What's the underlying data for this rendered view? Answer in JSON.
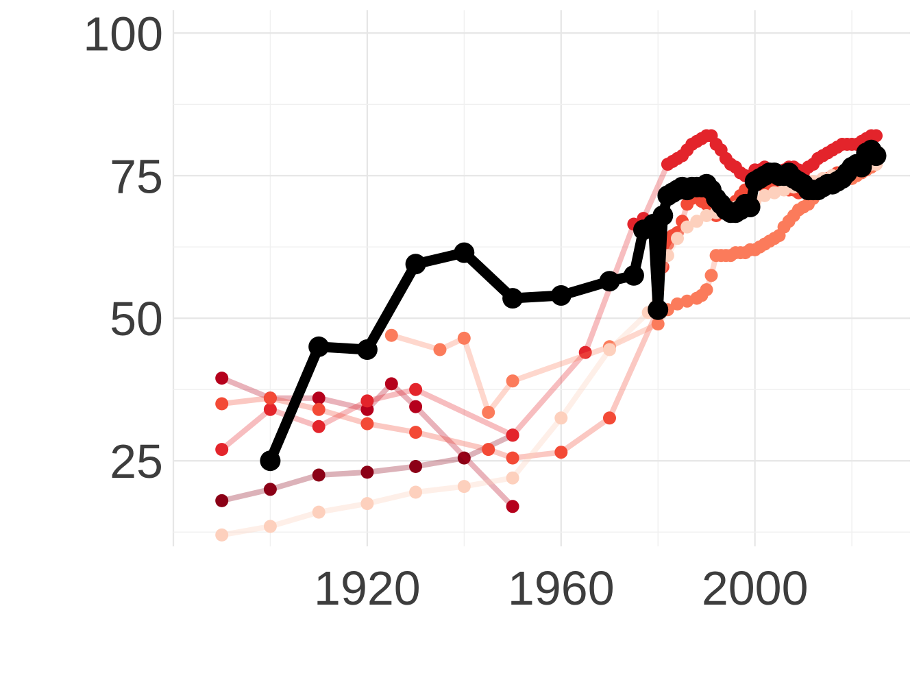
{
  "chart_data": {
    "type": "line",
    "title": "",
    "xlabel": "",
    "ylabel": "",
    "xlim": [
      1880,
      2032
    ],
    "ylim": [
      10,
      104
    ],
    "x_ticks": [
      1920,
      1960,
      2000
    ],
    "y_ticks": [
      25,
      50,
      75,
      100
    ],
    "grid": true,
    "legend": "none",
    "series": [
      {
        "color": "#8b0016",
        "opacity": 0.3,
        "points": [
          [
            1890,
            18
          ],
          [
            1900,
            20
          ],
          [
            1910,
            22.5
          ],
          [
            1920,
            23
          ],
          [
            1930,
            24
          ],
          [
            1940,
            25.5
          ],
          [
            1950,
            29.5
          ]
        ]
      },
      {
        "color": "#b5001c",
        "opacity": 0.3,
        "points": [
          [
            1890,
            39.5
          ],
          [
            1900,
            36
          ],
          [
            1910,
            36
          ],
          [
            1920,
            34
          ],
          [
            1925,
            38.5
          ],
          [
            1930,
            34.5
          ],
          [
            1950,
            17
          ]
        ]
      },
      {
        "color": "#e3242b",
        "opacity": 0.3,
        "points": [
          [
            1890,
            27
          ],
          [
            1900,
            34
          ],
          [
            1910,
            31
          ],
          [
            1920,
            35.5
          ],
          [
            1930,
            37.5
          ],
          [
            1950,
            29.5
          ],
          [
            1965,
            44
          ],
          [
            1975,
            66.5
          ],
          [
            1977,
            67.5
          ],
          [
            1982,
            77
          ],
          [
            1983,
            77.5
          ],
          [
            1984,
            78
          ],
          [
            1985,
            78.5
          ],
          [
            1986,
            79.5
          ],
          [
            1987,
            80.5
          ],
          [
            1988,
            81
          ],
          [
            1989,
            81.5
          ],
          [
            1990,
            82
          ],
          [
            1991,
            82
          ],
          [
            1992,
            80.5
          ],
          [
            1993,
            79.5
          ],
          [
            1994,
            78
          ],
          [
            1995,
            77
          ],
          [
            1996,
            76.5
          ],
          [
            1997,
            75.5
          ],
          [
            1998,
            75
          ],
          [
            1999,
            74.5
          ],
          [
            2000,
            76
          ],
          [
            2001,
            76
          ],
          [
            2002,
            76.5
          ],
          [
            2003,
            76
          ],
          [
            2004,
            75.5
          ],
          [
            2005,
            75.5
          ],
          [
            2006,
            76
          ],
          [
            2007,
            76.5
          ],
          [
            2008,
            76.5
          ],
          [
            2009,
            76
          ],
          [
            2010,
            75.5
          ],
          [
            2011,
            76.5
          ],
          [
            2012,
            77
          ],
          [
            2013,
            78
          ],
          [
            2014,
            78.5
          ],
          [
            2015,
            79
          ],
          [
            2016,
            79.5
          ],
          [
            2017,
            80
          ],
          [
            2018,
            80.5
          ],
          [
            2019,
            80.5
          ],
          [
            2020,
            80.5
          ],
          [
            2021,
            80.5
          ],
          [
            2022,
            81
          ],
          [
            2023,
            81.5
          ],
          [
            2024,
            82
          ],
          [
            2025,
            82
          ]
        ]
      },
      {
        "color": "#f34a36",
        "opacity": 0.3,
        "points": [
          [
            1890,
            35
          ],
          [
            1900,
            36
          ],
          [
            1910,
            34
          ],
          [
            1920,
            31.5
          ],
          [
            1930,
            30
          ],
          [
            1945,
            27
          ],
          [
            1950,
            25.5
          ],
          [
            1960,
            26.5
          ],
          [
            1970,
            32.5
          ],
          [
            1980,
            51.5
          ],
          [
            1981,
            59
          ],
          [
            1982,
            63
          ],
          [
            1983,
            64.5
          ],
          [
            1984,
            65
          ],
          [
            1985,
            67
          ],
          [
            1986,
            70
          ],
          [
            1987,
            71
          ],
          [
            1988,
            71.5
          ],
          [
            1989,
            70.5
          ],
          [
            1990,
            70
          ],
          [
            1991,
            69
          ],
          [
            1992,
            68
          ],
          [
            1993,
            68.5
          ],
          [
            1994,
            69
          ],
          [
            1995,
            69.5
          ],
          [
            1996,
            70.5
          ],
          [
            1997,
            71.5
          ],
          [
            1998,
            72.5
          ],
          [
            1999,
            73
          ],
          [
            2000,
            73.5
          ],
          [
            2001,
            73.5
          ],
          [
            2002,
            73
          ],
          [
            2003,
            73
          ],
          [
            2004,
            73
          ],
          [
            2005,
            73
          ],
          [
            2006,
            73
          ],
          [
            2007,
            72.5
          ],
          [
            2008,
            72.5
          ],
          [
            2009,
            72
          ],
          [
            2010,
            72.5
          ],
          [
            2011,
            72.5
          ],
          [
            2012,
            73
          ],
          [
            2013,
            73.5
          ],
          [
            2014,
            74
          ],
          [
            2015,
            74.5
          ],
          [
            2016,
            75
          ],
          [
            2017,
            75.5
          ],
          [
            2018,
            75.5
          ],
          [
            2019,
            76
          ],
          [
            2020,
            76
          ],
          [
            2021,
            76.5
          ],
          [
            2022,
            77
          ],
          [
            2023,
            77.5
          ],
          [
            2024,
            78
          ],
          [
            2025,
            78
          ]
        ]
      },
      {
        "color": "#fb7b5b",
        "opacity": 0.3,
        "points": [
          [
            1925,
            47
          ],
          [
            1935,
            44.5
          ],
          [
            1940,
            46.5
          ],
          [
            1945,
            33.5
          ],
          [
            1950,
            39
          ],
          [
            1970,
            45
          ],
          [
            1980,
            49
          ],
          [
            1982,
            51.5
          ],
          [
            1984,
            52.5
          ],
          [
            1986,
            53
          ],
          [
            1988,
            53.5
          ],
          [
            1989,
            54
          ],
          [
            1990,
            55
          ],
          [
            1991,
            57.5
          ],
          [
            1992,
            61
          ],
          [
            1993,
            61
          ],
          [
            1994,
            61
          ],
          [
            1995,
            61
          ],
          [
            1996,
            61.5
          ],
          [
            1997,
            61.5
          ],
          [
            1998,
            61.5
          ],
          [
            1999,
            62
          ],
          [
            2000,
            62
          ],
          [
            2001,
            62.5
          ],
          [
            2002,
            63
          ],
          [
            2003,
            63.5
          ],
          [
            2004,
            64
          ],
          [
            2005,
            64.5
          ],
          [
            2006,
            66
          ],
          [
            2007,
            67
          ],
          [
            2008,
            68
          ],
          [
            2009,
            69
          ],
          [
            2010,
            69.5
          ],
          [
            2011,
            70
          ],
          [
            2012,
            71
          ],
          [
            2013,
            72
          ],
          [
            2014,
            72.5
          ],
          [
            2015,
            73
          ],
          [
            2016,
            73.5
          ],
          [
            2017,
            74
          ],
          [
            2018,
            74
          ],
          [
            2019,
            74.5
          ],
          [
            2020,
            74.5
          ],
          [
            2021,
            75
          ],
          [
            2022,
            75.5
          ],
          [
            2023,
            76
          ],
          [
            2024,
            76.5
          ],
          [
            2025,
            77
          ]
        ]
      },
      {
        "color": "#fdd0bd",
        "opacity": 0.35,
        "points": [
          [
            1890,
            12
          ],
          [
            1900,
            13.5
          ],
          [
            1910,
            16
          ],
          [
            1920,
            17.5
          ],
          [
            1930,
            19.5
          ],
          [
            1940,
            20.5
          ],
          [
            1950,
            22
          ],
          [
            1960,
            32.5
          ],
          [
            1970,
            44.5
          ],
          [
            1978,
            51
          ],
          [
            1980,
            55
          ],
          [
            1982,
            61
          ],
          [
            1984,
            64
          ],
          [
            1986,
            66
          ],
          [
            1988,
            67
          ],
          [
            1990,
            68
          ],
          [
            1992,
            68.5
          ],
          [
            1994,
            69
          ],
          [
            1996,
            69.5
          ],
          [
            1998,
            70
          ],
          [
            2000,
            70.5
          ],
          [
            2002,
            71.5
          ],
          [
            2004,
            72
          ],
          [
            2006,
            72.5
          ],
          [
            2008,
            73
          ],
          [
            2010,
            73.5
          ],
          [
            2012,
            74
          ],
          [
            2014,
            74.5
          ],
          [
            2016,
            75
          ],
          [
            2018,
            75.5
          ],
          [
            2020,
            76
          ],
          [
            2022,
            76.5
          ],
          [
            2024,
            77
          ],
          [
            2025,
            77
          ]
        ]
      },
      {
        "color": "#000000",
        "opacity": 1,
        "highlight": true,
        "points": [
          [
            1900,
            25
          ],
          [
            1910,
            45
          ],
          [
            1920,
            44.5
          ],
          [
            1930,
            59.5
          ],
          [
            1940,
            61.5
          ],
          [
            1950,
            53.5
          ],
          [
            1960,
            54
          ],
          [
            1970,
            56.5
          ],
          [
            1975,
            57.5
          ],
          [
            1977,
            65.5
          ],
          [
            1979,
            66.5
          ],
          [
            1980,
            51.5
          ],
          [
            1981,
            68
          ],
          [
            1982,
            71.5
          ],
          [
            1983,
            72
          ],
          [
            1984,
            72.5
          ],
          [
            1985,
            73
          ],
          [
            1986,
            72.5
          ],
          [
            1987,
            73
          ],
          [
            1988,
            73
          ],
          [
            1989,
            73
          ],
          [
            1990,
            73.5
          ],
          [
            1991,
            72.5
          ],
          [
            1992,
            71
          ],
          [
            1993,
            70
          ],
          [
            1994,
            69
          ],
          [
            1995,
            68.5
          ],
          [
            1996,
            68.5
          ],
          [
            1997,
            69
          ],
          [
            1998,
            70
          ],
          [
            1999,
            69.5
          ],
          [
            2000,
            74
          ],
          [
            2001,
            74.5
          ],
          [
            2002,
            75
          ],
          [
            2003,
            75.5
          ],
          [
            2004,
            75.5
          ],
          [
            2005,
            75
          ],
          [
            2006,
            75
          ],
          [
            2007,
            75.5
          ],
          [
            2008,
            74.5
          ],
          [
            2009,
            74
          ],
          [
            2010,
            73.5
          ],
          [
            2011,
            72.5
          ],
          [
            2012,
            72.5
          ],
          [
            2013,
            72.5
          ],
          [
            2014,
            73
          ],
          [
            2015,
            73.5
          ],
          [
            2016,
            73.5
          ],
          [
            2017,
            74
          ],
          [
            2018,
            74.5
          ],
          [
            2019,
            75.5
          ],
          [
            2020,
            76.5
          ],
          [
            2021,
            77
          ],
          [
            2022,
            76.5
          ],
          [
            2023,
            79
          ],
          [
            2024,
            79.5
          ],
          [
            2025,
            78.5
          ]
        ]
      }
    ]
  }
}
